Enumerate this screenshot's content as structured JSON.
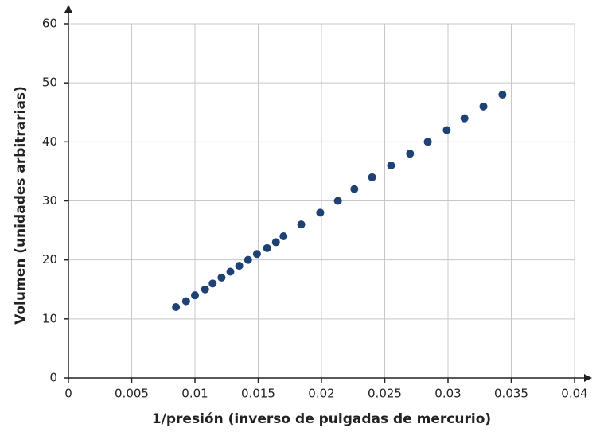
{
  "chart_data": {
    "type": "scatter",
    "x_label": "1/presión (inverso de pulgadas de mercurio)",
    "y_label": "Volumen (unidades arbitrarias)",
    "series": [
      {
        "color": "#1f4275",
        "x": [
          0.0085,
          0.0093,
          0.01,
          0.0108,
          0.0114,
          0.0121,
          0.0128,
          0.0135,
          0.0142,
          0.0149,
          0.0157,
          0.0164,
          0.017,
          0.0184,
          0.0199,
          0.0213,
          0.0226,
          0.024,
          0.0255,
          0.027,
          0.0284,
          0.0299,
          0.0313,
          0.0328,
          0.0343
        ],
        "values": [
          12,
          13,
          14,
          15,
          16,
          17,
          18,
          19,
          20,
          21,
          22,
          23,
          24,
          26,
          28,
          30,
          32,
          34,
          36,
          38,
          40,
          42,
          44,
          46,
          48
        ]
      }
    ],
    "xlim": [
      0,
      0.04
    ],
    "xticks": [
      0,
      0.005,
      0.01,
      0.015,
      0.02,
      0.025,
      0.03,
      0.035,
      0.04
    ],
    "ylim": [
      0,
      60
    ],
    "yticks": [
      0,
      10,
      20,
      30,
      40,
      50,
      60
    ],
    "grid": true
  }
}
